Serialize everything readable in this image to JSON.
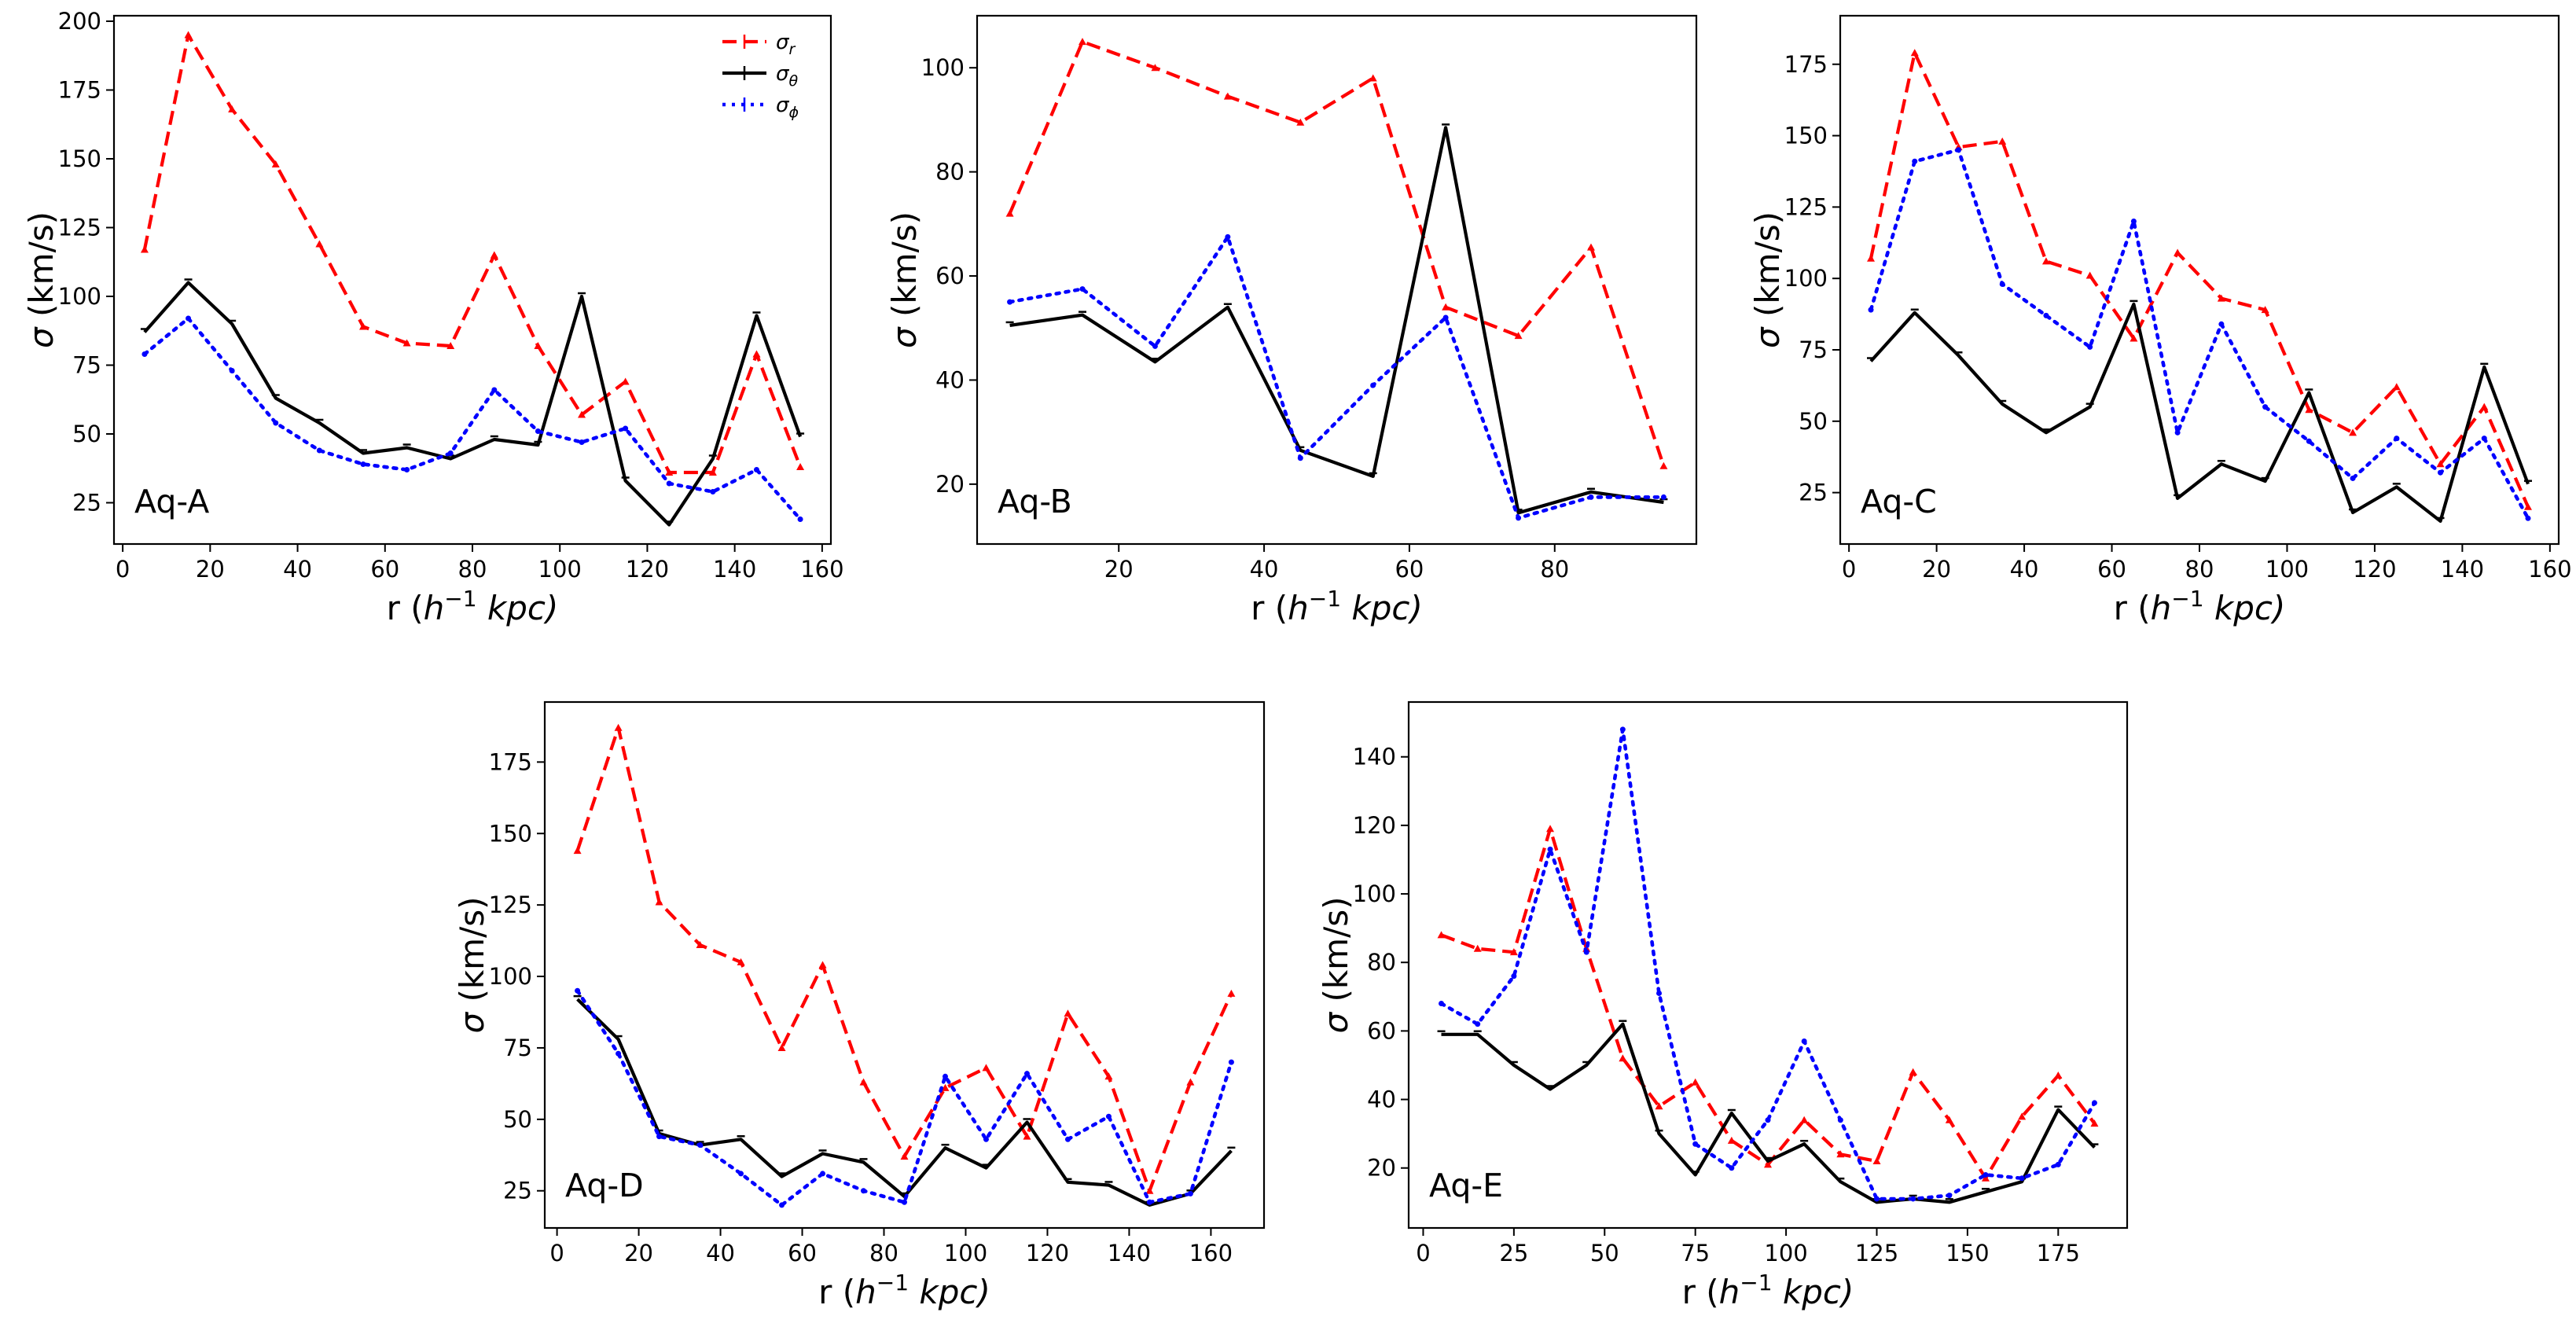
{
  "legend": {
    "entries": [
      {
        "key": "sigma_r",
        "text": "σ",
        "sub": "r"
      },
      {
        "key": "sigma_theta",
        "text": "σ",
        "sub": "θ"
      },
      {
        "key": "sigma_phi",
        "text": "σ",
        "sub": "ϕ"
      }
    ]
  },
  "colors": {
    "sigma_r": "#ff0000",
    "sigma_theta": "#000000",
    "sigma_phi": "#0000ff"
  },
  "chart_data": [
    {
      "type": "line",
      "label": "Aq-A",
      "xlabel_main": "r (",
      "xlabel_unit": "h",
      "xlabel_exp": "−1",
      "xlabel_tail": " kpc)",
      "ylabel_sym": "σ",
      "ylabel_unit": " (km/s)",
      "xlim": [
        -2,
        162
      ],
      "ylim": [
        10,
        202
      ],
      "xticks": [
        0,
        20,
        40,
        60,
        80,
        100,
        120,
        140,
        160
      ],
      "yticks": [
        25,
        50,
        75,
        100,
        125,
        150,
        175,
        200
      ],
      "show_legend": true,
      "x": [
        5,
        15,
        25,
        35,
        45,
        55,
        65,
        75,
        85,
        95,
        105,
        115,
        125,
        135,
        145,
        155
      ],
      "series": [
        {
          "name": "sigma_r",
          "values": [
            117,
            195,
            168,
            148,
            119,
            89,
            83,
            82,
            115,
            82,
            57,
            69,
            36,
            36,
            79,
            38
          ]
        },
        {
          "name": "sigma_theta",
          "values": [
            87,
            105,
            90,
            63,
            54,
            43,
            45,
            41,
            48,
            46,
            100,
            33,
            17,
            41,
            93,
            49
          ]
        },
        {
          "name": "sigma_phi",
          "values": [
            79,
            92,
            73,
            54,
            44,
            39,
            37,
            43,
            66,
            51,
            47,
            52,
            32,
            29,
            37,
            19
          ]
        }
      ]
    },
    {
      "type": "line",
      "label": "Aq-B",
      "xlabel_main": "r (",
      "xlabel_unit": "h",
      "xlabel_exp": "−1",
      "xlabel_tail": " kpc)",
      "ylabel_sym": "σ",
      "ylabel_unit": " (km/s)",
      "xlim": [
        0.5,
        99.5
      ],
      "ylim": [
        8.5,
        110
      ],
      "xticks": [
        20,
        40,
        60,
        80
      ],
      "yticks": [
        20,
        40,
        60,
        80,
        100
      ],
      "show_legend": false,
      "x": [
        5,
        15,
        25,
        35,
        45,
        55,
        65,
        75,
        85,
        95
      ],
      "series": [
        {
          "name": "sigma_r",
          "values": [
            72,
            105,
            100,
            94.5,
            89.5,
            98,
            54,
            48.5,
            65.5,
            23.5
          ]
        },
        {
          "name": "sigma_theta",
          "values": [
            50.5,
            52.5,
            43.5,
            54,
            26.5,
            21.5,
            88.5,
            14.5,
            18.5,
            16.5
          ]
        },
        {
          "name": "sigma_phi",
          "values": [
            55,
            57.5,
            46.5,
            67.5,
            25,
            39,
            52,
            13.5,
            17.5,
            17.5
          ]
        }
      ]
    },
    {
      "type": "line",
      "label": "Aq-C",
      "xlabel_main": "r (",
      "xlabel_unit": "h",
      "xlabel_exp": "−1",
      "xlabel_tail": " kpc)",
      "ylabel_sym": "σ",
      "ylabel_unit": " (km/s)",
      "xlim": [
        -2,
        162
      ],
      "ylim": [
        7,
        192
      ],
      "xticks": [
        0,
        20,
        40,
        60,
        80,
        100,
        120,
        140,
        160
      ],
      "yticks": [
        25,
        50,
        75,
        100,
        125,
        150,
        175
      ],
      "show_legend": false,
      "x": [
        5,
        15,
        25,
        35,
        45,
        55,
        65,
        75,
        85,
        95,
        105,
        115,
        125,
        135,
        145,
        155
      ],
      "series": [
        {
          "name": "sigma_r",
          "values": [
            107,
            179,
            146,
            148,
            106,
            101,
            79,
            109,
            93,
            89,
            54,
            46,
            62,
            35,
            55,
            20
          ]
        },
        {
          "name": "sigma_theta",
          "values": [
            71,
            88,
            73,
            56,
            46,
            55,
            91,
            23,
            35,
            29,
            60,
            18,
            27,
            15,
            69,
            28
          ]
        },
        {
          "name": "sigma_phi",
          "values": [
            89,
            141,
            145,
            98,
            87,
            76,
            120,
            46,
            84,
            55,
            43,
            30,
            44,
            32,
            44,
            16
          ]
        }
      ]
    },
    {
      "type": "line",
      "label": "Aq-D",
      "xlabel_main": "r (",
      "xlabel_unit": "h",
      "xlabel_exp": "−1",
      "xlabel_tail": " kpc)",
      "ylabel_sym": "σ",
      "ylabel_unit": " (km/s)",
      "xlim": [
        -3,
        173
      ],
      "ylim": [
        12,
        196
      ],
      "xticks": [
        0,
        20,
        40,
        60,
        80,
        100,
        120,
        140,
        160
      ],
      "yticks": [
        25,
        50,
        75,
        100,
        125,
        150,
        175
      ],
      "show_legend": false,
      "x": [
        5,
        15,
        25,
        35,
        45,
        55,
        65,
        75,
        85,
        95,
        105,
        115,
        125,
        135,
        145,
        155,
        165
      ],
      "series": [
        {
          "name": "sigma_r",
          "values": [
            144,
            187,
            126,
            111,
            105,
            75,
            104,
            63,
            37,
            61,
            68,
            44,
            87,
            65,
            25,
            63,
            94
          ]
        },
        {
          "name": "sigma_theta",
          "values": [
            92,
            78,
            45,
            41,
            43,
            30,
            38,
            35,
            23,
            40,
            33,
            49,
            28,
            27,
            20,
            24,
            39
          ]
        },
        {
          "name": "sigma_phi",
          "values": [
            95,
            73,
            44,
            41,
            31,
            20,
            31,
            25,
            21,
            65,
            43,
            66,
            43,
            51,
            21,
            24,
            70
          ]
        }
      ]
    },
    {
      "type": "line",
      "label": "Aq-E",
      "xlabel_main": "r (",
      "xlabel_unit": "h",
      "xlabel_exp": "−1",
      "xlabel_tail": " kpc)",
      "ylabel_sym": "σ",
      "ylabel_unit": " (km/s)",
      "xlim": [
        -4,
        194
      ],
      "ylim": [
        2.5,
        156
      ],
      "xticks": [
        0,
        25,
        50,
        75,
        100,
        125,
        150,
        175
      ],
      "yticks": [
        20,
        40,
        60,
        80,
        100,
        120,
        140
      ],
      "show_legend": false,
      "x": [
        5,
        15,
        25,
        35,
        45,
        55,
        65,
        75,
        85,
        95,
        105,
        115,
        125,
        135,
        145,
        155,
        165,
        175,
        185
      ],
      "series": [
        {
          "name": "sigma_r",
          "values": [
            88,
            84,
            83,
            119,
            84,
            52,
            38,
            45,
            28,
            21,
            34,
            24,
            22,
            48,
            34,
            17,
            35,
            47,
            33
          ]
        },
        {
          "name": "sigma_theta",
          "values": [
            59,
            59,
            50,
            43,
            50,
            62,
            30,
            18,
            36,
            22,
            27,
            16,
            10,
            11,
            10,
            13,
            16,
            37,
            26
          ]
        },
        {
          "name": "sigma_phi",
          "values": [
            68,
            62,
            76,
            113,
            83,
            148,
            71,
            27,
            20,
            34,
            57,
            34,
            11,
            11,
            12,
            18,
            17,
            21,
            39
          ]
        }
      ]
    }
  ]
}
